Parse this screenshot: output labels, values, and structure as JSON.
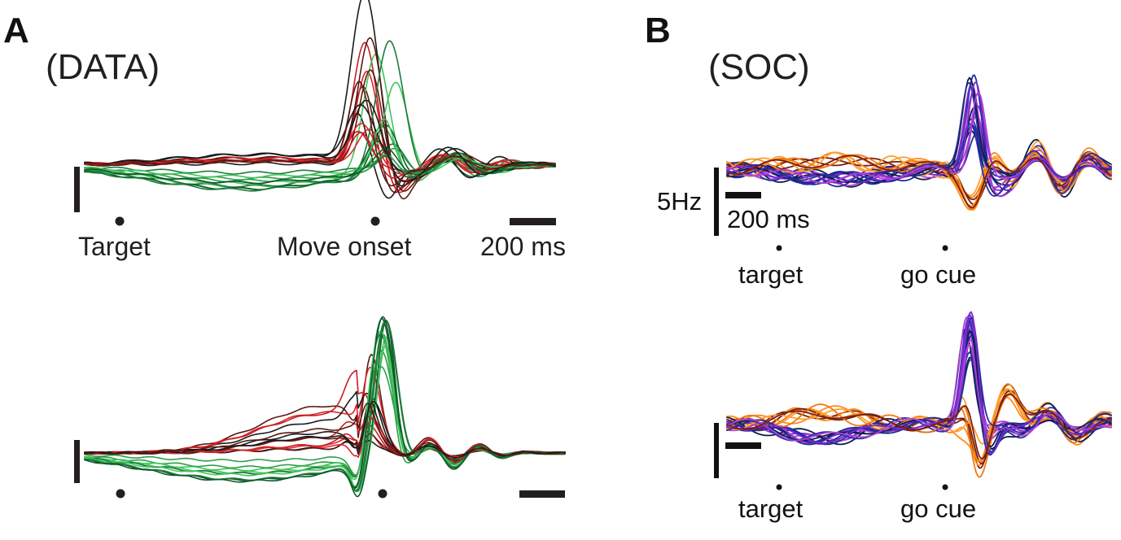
{
  "panel_a": {
    "letter": "A",
    "condition": "(DATA)",
    "top": {
      "event_1": "Target",
      "event_2": "Move onset",
      "scale": "200 ms"
    }
  },
  "panel_b": {
    "letter": "B",
    "condition": "(SOC)",
    "top": {
      "scale_y": "5Hz",
      "scale_x": "200 ms",
      "event_1": "target",
      "event_2": "go cue"
    },
    "bottom": {
      "event_1": "target",
      "event_2": "go cue"
    }
  },
  "colors": {
    "data_palette": [
      "#1a1a1a",
      "#5a1a14",
      "#e0242a",
      "#c81e24",
      "#2e9e4a",
      "#3fc45a",
      "#1f7a3a",
      "#0f5a2a"
    ],
    "soc_palette": [
      "#0d1a4a",
      "#1f2f8f",
      "#2a2aa8",
      "#7a2acf",
      "#b040d8",
      "#7a1f10",
      "#ff8a1a",
      "#ffa030",
      "#f07a10"
    ],
    "scale_bar": "#231f20"
  }
}
